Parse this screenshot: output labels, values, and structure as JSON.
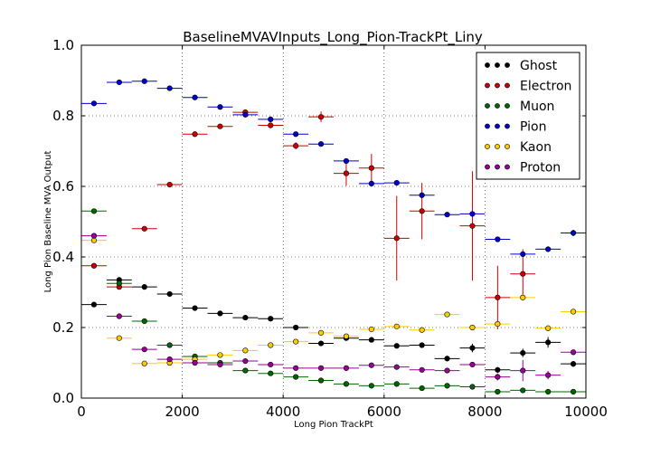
{
  "chart_data": {
    "type": "scatter",
    "title": "BaselineMVAVInputs_Long_Pion-TrackPt_Liny",
    "xlabel": "Long Pion TrackPt",
    "ylabel": "Long Pion Baseline MVA Output",
    "xlim": [
      0,
      10000
    ],
    "ylim": [
      0.0,
      1.0
    ],
    "xticks": [
      0,
      2000,
      4000,
      6000,
      8000,
      10000
    ],
    "xtick_labels": [
      "0",
      "2000",
      "4000",
      "6000",
      "8000",
      "10000"
    ],
    "yticks": [
      0.0,
      0.2,
      0.4,
      0.6,
      0.8,
      1.0
    ],
    "ytick_labels": [
      "0.0",
      "0.2",
      "0.4",
      "0.6",
      "0.8",
      "1.0"
    ],
    "grid": true,
    "legend_position": "top-right",
    "bin_centers": [
      250,
      750,
      1250,
      1750,
      2250,
      2750,
      3250,
      3750,
      4250,
      4750,
      5250,
      5750,
      6250,
      6750,
      7250,
      7750,
      8250,
      8750,
      9250,
      9750
    ],
    "bin_half_width": 250,
    "series": [
      {
        "name": "Ghost",
        "color": "#000000",
        "values": [
          0.265,
          0.335,
          0.315,
          0.295,
          0.255,
          0.24,
          0.228,
          0.225,
          0.2,
          0.155,
          0.17,
          0.165,
          0.148,
          0.15,
          0.112,
          0.142,
          0.08,
          0.128,
          0.158,
          0.097
        ],
        "errors": [
          0.003,
          0.004,
          0.004,
          0.004,
          0.004,
          0.004,
          0.004,
          0.004,
          0.005,
          0.005,
          0.006,
          0.006,
          0.007,
          0.007,
          0.008,
          0.012,
          0.008,
          0.012,
          0.015,
          0.008
        ]
      },
      {
        "name": "Electron",
        "color": "#cc0000",
        "values": [
          0.375,
          0.315,
          0.48,
          0.605,
          0.748,
          0.77,
          0.81,
          0.773,
          0.715,
          0.797,
          0.637,
          0.652,
          0.453,
          0.53,
          null,
          0.488,
          0.285,
          0.352,
          null,
          null
        ],
        "errors": [
          0.003,
          0.004,
          0.004,
          0.004,
          0.004,
          0.005,
          0.008,
          0.008,
          0.01,
          0.015,
          0.035,
          0.04,
          0.12,
          0.08,
          null,
          0.155,
          0.09,
          0.07,
          null,
          null
        ]
      },
      {
        "name": "Muon",
        "color": "#006600",
        "values": [
          0.53,
          0.325,
          0.218,
          0.15,
          0.118,
          0.1,
          0.078,
          0.07,
          0.06,
          0.05,
          0.04,
          0.035,
          0.04,
          0.028,
          0.035,
          0.032,
          0.018,
          0.022,
          0.018,
          0.018
        ],
        "errors": [
          0.004,
          0.004,
          0.004,
          0.004,
          0.004,
          0.003,
          0.003,
          0.003,
          0.003,
          0.003,
          0.003,
          0.003,
          0.004,
          0.003,
          0.004,
          0.004,
          0.003,
          0.003,
          0.003,
          0.003
        ]
      },
      {
        "name": "Pion",
        "color": "#0000cc",
        "values": [
          0.835,
          0.895,
          0.898,
          0.878,
          0.852,
          0.825,
          0.803,
          0.79,
          0.748,
          0.72,
          0.672,
          0.608,
          0.61,
          0.575,
          0.52,
          0.522,
          0.45,
          0.408,
          0.422,
          0.468
        ],
        "errors": [
          0.003,
          0.003,
          0.003,
          0.003,
          0.003,
          0.003,
          0.003,
          0.003,
          0.004,
          0.004,
          0.005,
          0.005,
          0.006,
          0.006,
          0.006,
          0.007,
          0.007,
          0.007,
          0.008,
          0.009
        ]
      },
      {
        "name": "Kaon",
        "color": "#ffcc00",
        "values": [
          0.447,
          0.17,
          0.098,
          0.1,
          0.11,
          0.122,
          0.135,
          0.15,
          0.16,
          0.185,
          0.175,
          0.195,
          0.203,
          0.193,
          0.237,
          0.2,
          0.21,
          0.285,
          0.198,
          0.245
        ],
        "errors": [
          0.003,
          0.003,
          0.003,
          0.003,
          0.003,
          0.003,
          0.003,
          0.004,
          0.004,
          0.004,
          0.005,
          0.005,
          0.006,
          0.006,
          0.006,
          0.007,
          0.008,
          0.009,
          0.008,
          0.008
        ]
      },
      {
        "name": "Proton",
        "color": "#990099",
        "values": [
          0.46,
          0.232,
          0.138,
          0.11,
          0.1,
          0.095,
          0.105,
          0.095,
          0.085,
          0.085,
          0.085,
          0.093,
          0.088,
          0.08,
          0.078,
          0.095,
          0.06,
          0.078,
          0.065,
          0.13
        ],
        "errors": [
          0.003,
          0.003,
          0.003,
          0.003,
          0.003,
          0.003,
          0.003,
          0.003,
          0.003,
          0.003,
          0.004,
          0.004,
          0.004,
          0.004,
          0.005,
          0.006,
          0.01,
          0.03,
          0.012,
          0.008
        ]
      }
    ]
  }
}
